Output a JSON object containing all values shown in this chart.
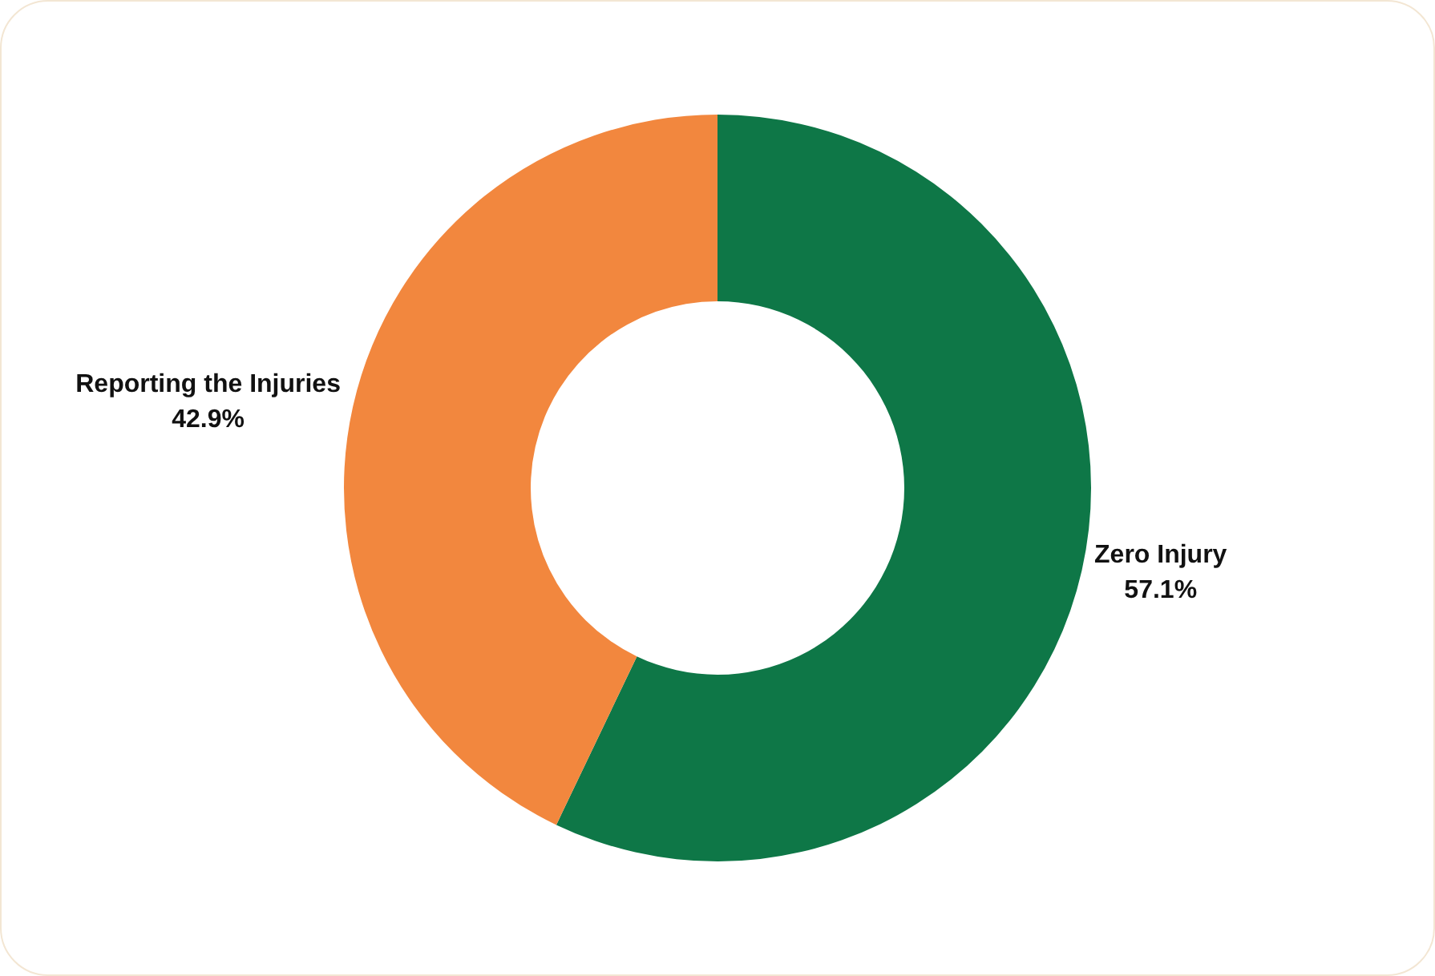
{
  "chart_data": {
    "type": "donut",
    "categories": [
      "Zero Injury",
      "Reporting the Injuries"
    ],
    "values": [
      57.1,
      42.9
    ],
    "colors": [
      "#0e7747",
      "#f2873e"
    ],
    "value_labels": [
      "57.1%",
      "42.9%"
    ],
    "legend": false
  }
}
